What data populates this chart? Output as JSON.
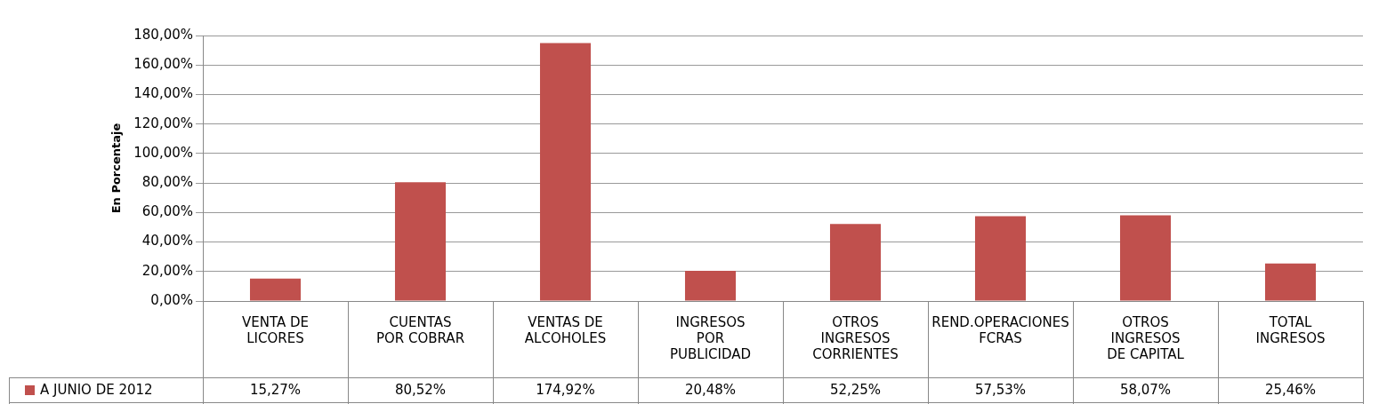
{
  "chart_data": {
    "type": "bar",
    "ylabel": "En Porcentaje",
    "categories": [
      "VENTA DE LICORES",
      "CUENTAS POR COBRAR",
      "VENTAS DE ALCOHOLES",
      "INGRESOS POR PUBLICIDAD",
      "OTROS INGRESOS CORRIENTES",
      "REND.OPERACIONES FCRAS",
      "OTROS INGRESOS DE CAPITAL",
      "TOTAL INGRESOS"
    ],
    "series": [
      {
        "name": "A JUNIO DE 2012",
        "color": "#c0504d",
        "values": [
          15.27,
          80.52,
          174.92,
          20.48,
          52.25,
          57.53,
          58.07,
          25.46
        ]
      }
    ],
    "ylim": [
      0,
      180
    ],
    "yticks": [
      {
        "value": 0,
        "label": "0,00%"
      },
      {
        "value": 20,
        "label": "20,00%"
      },
      {
        "value": 40,
        "label": "40,00%"
      },
      {
        "value": 60,
        "label": "60,00%"
      },
      {
        "value": 80,
        "label": "80,00%"
      },
      {
        "value": 100,
        "label": "100,00%"
      },
      {
        "value": 120,
        "label": "120,00%"
      },
      {
        "value": 140,
        "label": "140,00%"
      },
      {
        "value": 160,
        "label": "160,00%"
      },
      {
        "value": 180,
        "label": "180,00%"
      }
    ],
    "value_labels": [
      "15,27%",
      "80,52%",
      "174,92%",
      "20,48%",
      "52,25%",
      "57,53%",
      "58,07%",
      "25,46%"
    ],
    "grid": true,
    "legend": "bottom left"
  }
}
